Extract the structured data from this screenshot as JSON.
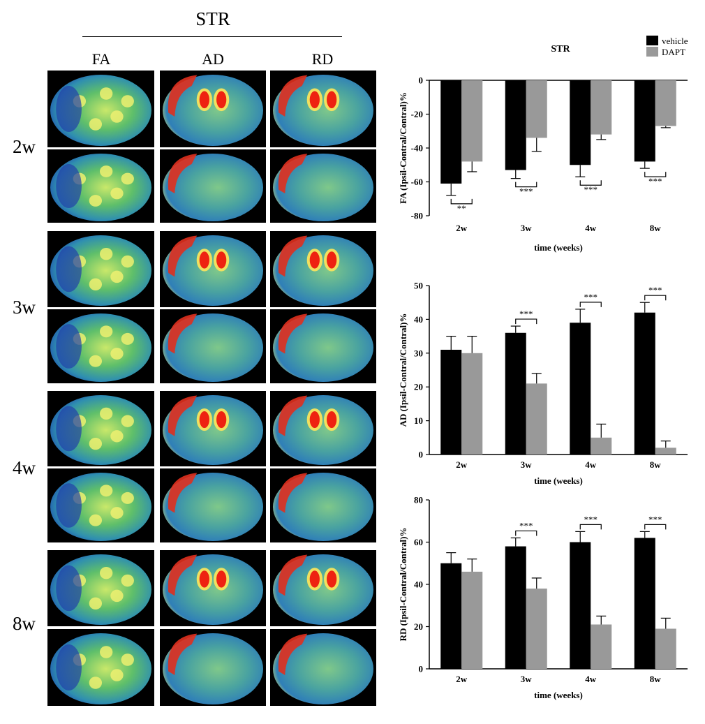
{
  "figure": {
    "region_title": "STR",
    "columns": [
      "FA",
      "AD",
      "RD"
    ],
    "rows": [
      "2w",
      "3w",
      "4w",
      "8w"
    ]
  },
  "legend": {
    "items": [
      {
        "label": "vehicle",
        "color": "#000000"
      },
      {
        "label": "DAPT",
        "color": "#999999"
      }
    ],
    "placement": "top-right"
  },
  "colors": {
    "vehicle": "#000000",
    "DAPT": "#999999"
  },
  "chart_data": [
    {
      "type": "bar",
      "title": "STR",
      "categories": [
        "2w",
        "3w",
        "4w",
        "8w"
      ],
      "xlabel": "time (weeks)",
      "ylabel": "FA (Ipsil-Contral/Contral)%",
      "ylim": [
        -80,
        0
      ],
      "yticks": [
        0,
        -20,
        -40,
        -60,
        -80
      ],
      "series": [
        {
          "name": "vehicle",
          "values": [
            -61,
            -53,
            -50,
            -48
          ],
          "errors": [
            7,
            5,
            7,
            4
          ]
        },
        {
          "name": "DAPT",
          "values": [
            -48,
            -34,
            -32,
            -27
          ],
          "errors": [
            6,
            8,
            3,
            1
          ]
        }
      ],
      "significance": [
        "**",
        "***",
        "***",
        "***"
      ]
    },
    {
      "type": "bar",
      "categories": [
        "2w",
        "3w",
        "4w",
        "8w"
      ],
      "xlabel": "time (weeks)",
      "ylabel": "AD (Ipsil-Contral/Contral)%",
      "ylim": [
        0,
        50
      ],
      "yticks": [
        0,
        10,
        20,
        30,
        40,
        50
      ],
      "series": [
        {
          "name": "vehicle",
          "values": [
            31,
            36,
            39,
            42
          ],
          "errors": [
            4,
            2,
            4,
            3
          ]
        },
        {
          "name": "DAPT",
          "values": [
            30,
            21,
            5,
            2
          ],
          "errors": [
            5,
            3,
            4,
            2
          ]
        }
      ],
      "significance": [
        "",
        "***",
        "***",
        "***"
      ]
    },
    {
      "type": "bar",
      "categories": [
        "2w",
        "3w",
        "4w",
        "8w"
      ],
      "xlabel": "time (weeks)",
      "ylabel": "RD (Ipsil-Contral/Contral)%",
      "ylim": [
        0,
        80
      ],
      "yticks": [
        0,
        20,
        40,
        60,
        80
      ],
      "series": [
        {
          "name": "vehicle",
          "values": [
            50,
            58,
            60,
            62
          ],
          "errors": [
            5,
            4,
            5,
            3
          ]
        },
        {
          "name": "DAPT",
          "values": [
            46,
            38,
            21,
            19
          ],
          "errors": [
            6,
            5,
            4,
            5
          ]
        }
      ],
      "significance": [
        "",
        "***",
        "***",
        "***"
      ]
    }
  ]
}
